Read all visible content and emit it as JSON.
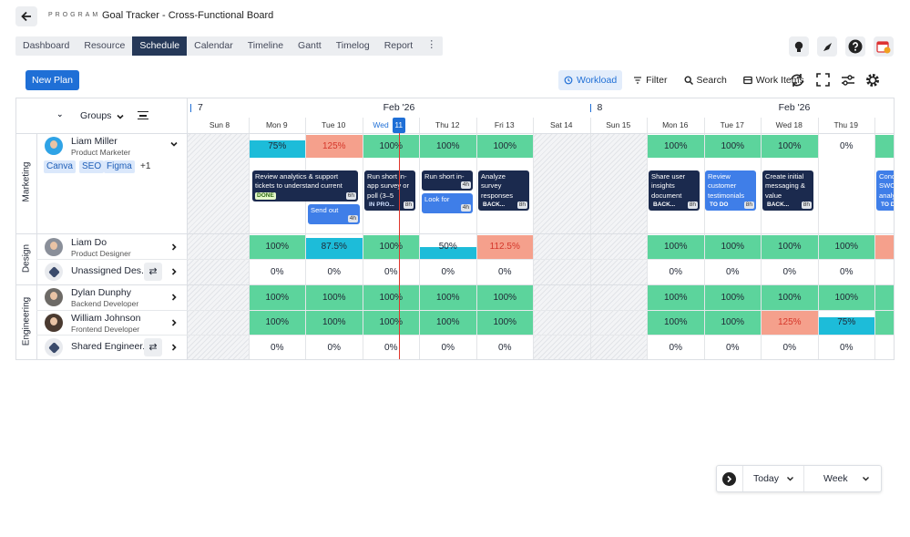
{
  "header": {
    "label": "PROGRAM",
    "title": "Goal Tracker - Cross-Functional Board"
  },
  "tabs": [
    {
      "label": "Dashboard"
    },
    {
      "label": "Resource"
    },
    {
      "label": "Schedule",
      "active": true
    },
    {
      "label": "Calendar"
    },
    {
      "label": "Timeline"
    },
    {
      "label": "Gantt"
    },
    {
      "label": "Timelog"
    },
    {
      "label": "Report"
    }
  ],
  "toolbar": {
    "primary": "New Plan",
    "actions": [
      {
        "label": "Workload",
        "active": true
      },
      {
        "label": "Filter"
      },
      {
        "label": "Search"
      },
      {
        "label": "Work Items"
      }
    ]
  },
  "board": {
    "groups_label": "Groups",
    "weeks": [
      {
        "number": "7",
        "month": "Feb '26"
      },
      {
        "number": "8",
        "month": "Feb '26"
      }
    ],
    "days": [
      {
        "label": "Sun 8",
        "weekend": true
      },
      {
        "label": "Mon 9"
      },
      {
        "label": "Tue 10"
      },
      {
        "label": "Wed",
        "today": "11"
      },
      {
        "label": "Thu 12"
      },
      {
        "label": "Fri 13"
      },
      {
        "label": "Sat 14",
        "weekend": true
      },
      {
        "label": "Sun 15",
        "weekend": true
      },
      {
        "label": "Mon 16"
      },
      {
        "label": "Tue 17"
      },
      {
        "label": "Wed 18"
      },
      {
        "label": "Thu 19"
      },
      {
        "label": "F"
      }
    ],
    "groups": [
      {
        "name": "Marketing",
        "members": [
          {
            "name": "Liam Miller",
            "role": "Product Marketer",
            "tags": [
              "Canva",
              "SEO",
              "Figma"
            ],
            "more": "+1",
            "workload": [
              null,
              75,
              125,
              100,
              100,
              100,
              null,
              null,
              100,
              100,
              100,
              0,
              100
            ],
            "workload_labels": [
              null,
              "75%",
              "125%",
              "100%",
              "100%",
              "100%",
              null,
              null,
              "100%",
              "100%",
              "100%",
              "0%",
              null
            ],
            "tasks": [
              {
                "title": "Review analytics & support tickets to understand current",
                "status": "DONE",
                "hours": "6h",
                "kind": "dark"
              },
              {
                "title": "Send out surveys to",
                "hours": "4h",
                "kind": "light"
              },
              {
                "title": "Run short in-app survey or poll (3–5",
                "status": "IN PRO...",
                "hours": "8h",
                "kind": "dark"
              },
              {
                "title": "Run short in-app survey",
                "hours": "4h",
                "kind": "dark"
              },
              {
                "title": "Look for trends in",
                "hours": "4h",
                "kind": "light"
              },
              {
                "title": "Analyze survey responses",
                "status": "BACK...",
                "hours": "8h",
                "kind": "dark"
              },
              {
                "title": "Share user insights document",
                "status": "BACK...",
                "hours": "8h",
                "kind": "dark"
              },
              {
                "title": "Review customer testimonials",
                "status": "TO DO",
                "hours": "8h",
                "kind": "light"
              },
              {
                "title": "Create initial messaging & value",
                "status": "BACK...",
                "hours": "8h",
                "kind": "dark"
              },
              {
                "title": "Conduct SWOT analysis",
                "status": "TO DO",
                "hours": "8h",
                "kind": "light"
              }
            ]
          }
        ]
      },
      {
        "name": "Design",
        "members": [
          {
            "name": "Liam Do",
            "role": "Product Designer",
            "workload": [
              null,
              100,
              87.5,
              100,
              50,
              112.5,
              null,
              null,
              100,
              100,
              100,
              100,
              112.5
            ],
            "workload_labels": [
              null,
              "100%",
              "87.5%",
              "100%",
              "50%",
              "112.5%",
              null,
              null,
              "100%",
              "100%",
              "100%",
              "100%",
              null
            ]
          },
          {
            "name": "Unassigned Des...",
            "shared": true,
            "workload": [
              null,
              0,
              0,
              0,
              0,
              0,
              null,
              null,
              0,
              0,
              0,
              0,
              0
            ],
            "workload_labels": [
              null,
              "0%",
              "0%",
              "0%",
              "0%",
              "0%",
              null,
              null,
              "0%",
              "0%",
              "0%",
              "0%",
              null
            ]
          }
        ]
      },
      {
        "name": "Engineering",
        "members": [
          {
            "name": "Dylan Dunphy",
            "role": "Backend Developer",
            "workload": [
              null,
              100,
              100,
              100,
              100,
              100,
              null,
              null,
              100,
              100,
              100,
              100,
              100
            ],
            "workload_labels": [
              null,
              "100%",
              "100%",
              "100%",
              "100%",
              "100%",
              null,
              null,
              "100%",
              "100%",
              "100%",
              "100%",
              null
            ]
          },
          {
            "name": "William Johnson",
            "role": "Frontend Developer",
            "workload": [
              null,
              100,
              100,
              100,
              100,
              100,
              null,
              null,
              100,
              100,
              125,
              75,
              100
            ],
            "workload_labels": [
              null,
              "100%",
              "100%",
              "100%",
              "100%",
              "100%",
              null,
              null,
              "100%",
              "100%",
              "125%",
              "75%",
              null
            ]
          },
          {
            "name": "Shared Engineer...",
            "shared": true,
            "workload": [
              null,
              0,
              0,
              0,
              0,
              0,
              null,
              null,
              0,
              0,
              0,
              0,
              0
            ],
            "workload_labels": [
              null,
              "0%",
              "0%",
              "0%",
              "0%",
              "0%",
              null,
              null,
              "0%",
              "0%",
              "0%",
              "0%",
              null
            ]
          }
        ]
      }
    ]
  },
  "footer": {
    "today": "Today",
    "view": "Week"
  }
}
